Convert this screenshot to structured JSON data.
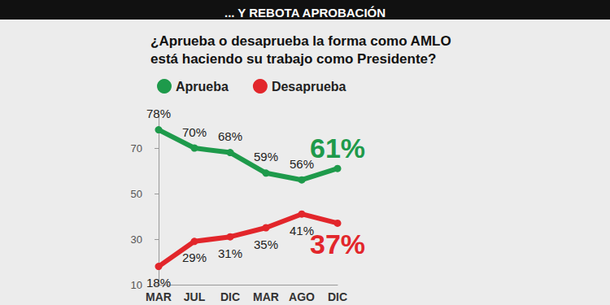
{
  "chart_data": {
    "type": "line",
    "title": "... Y REBOTA APROBACIÓN",
    "subtitle": "¿Aprueba o desaprueba la forma como AMLO está haciendo su trabajo como Presidente?",
    "categories": [
      "MAR",
      "JUL",
      "DIC",
      "MAR",
      "AGO",
      "DIC"
    ],
    "series": [
      {
        "name": "Aprueba",
        "color": "#1e9a4b",
        "values": [
          78,
          70,
          68,
          59,
          56,
          61
        ],
        "value_labels": [
          "78%",
          "70%",
          "68%",
          "59%",
          "56%",
          "61%"
        ]
      },
      {
        "name": "Desaprueba",
        "color": "#e2262b",
        "values": [
          18,
          29,
          31,
          35,
          41,
          37
        ],
        "value_labels": [
          "18%",
          "29%",
          "31%",
          "35%",
          "41%",
          "37%"
        ]
      }
    ],
    "ylim": [
      10,
      85
    ],
    "yticks": [
      10,
      30,
      50,
      70
    ],
    "grid": false,
    "legend": "top-left",
    "data_labels": true,
    "marker": "circle"
  }
}
